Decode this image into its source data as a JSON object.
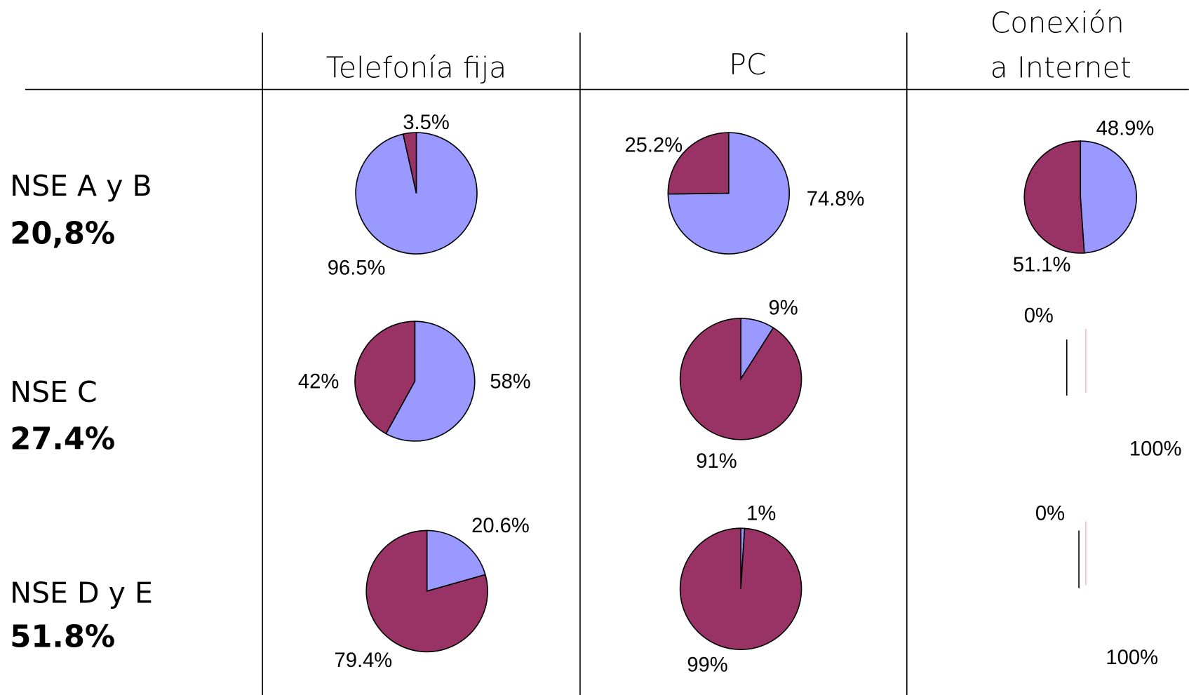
{
  "table": {
    "columns": [
      [
        "Telefonía fija"
      ],
      [
        "PC"
      ],
      [
        "Conexión",
        "a Internet"
      ]
    ],
    "rows": [
      {
        "label": "NSE A y B",
        "share": "20,8%"
      },
      {
        "label": "NSE C",
        "share": "27.4%"
      },
      {
        "label": "NSE D y E",
        "share": "51.8%"
      }
    ]
  },
  "chart_data": [
    {
      "type": "pie",
      "values": [
        96.5,
        3.5
      ],
      "value_labels": [
        "96.5%",
        "3.5%"
      ],
      "colors": [
        "#9999ff",
        "#993366"
      ]
    },
    {
      "type": "pie",
      "values": [
        74.8,
        25.2
      ],
      "value_labels": [
        "74.8%",
        "25.2%"
      ],
      "colors": [
        "#9999ff",
        "#993366"
      ]
    },
    {
      "type": "pie",
      "values": [
        48.9,
        51.1
      ],
      "value_labels": [
        "48.9%",
        "51.1%"
      ],
      "colors": [
        "#9999ff",
        "#993366"
      ]
    },
    {
      "type": "pie",
      "values": [
        58,
        42
      ],
      "value_labels": [
        "58%",
        "42%"
      ],
      "colors": [
        "#9999ff",
        "#993366"
      ]
    },
    {
      "type": "pie",
      "values": [
        9,
        91
      ],
      "value_labels": [
        "9%",
        "91%"
      ],
      "colors": [
        "#9999ff",
        "#993366"
      ]
    },
    {
      "type": "pie",
      "values": [
        0,
        100
      ],
      "value_labels": [
        "0%",
        "100%"
      ],
      "colors": [
        "#9999ff",
        "#993366"
      ]
    },
    {
      "type": "pie",
      "values": [
        20.6,
        79.4
      ],
      "value_labels": [
        "20.6%",
        "79.4%"
      ],
      "colors": [
        "#9999ff",
        "#993366"
      ]
    },
    {
      "type": "pie",
      "values": [
        1,
        99
      ],
      "value_labels": [
        "1%",
        "99%"
      ],
      "colors": [
        "#9999ff",
        "#993366"
      ]
    },
    {
      "type": "pie",
      "values": [
        0,
        100
      ],
      "value_labels": [
        "0%",
        "100%"
      ],
      "colors": [
        "#9999ff",
        "#993366"
      ]
    }
  ]
}
